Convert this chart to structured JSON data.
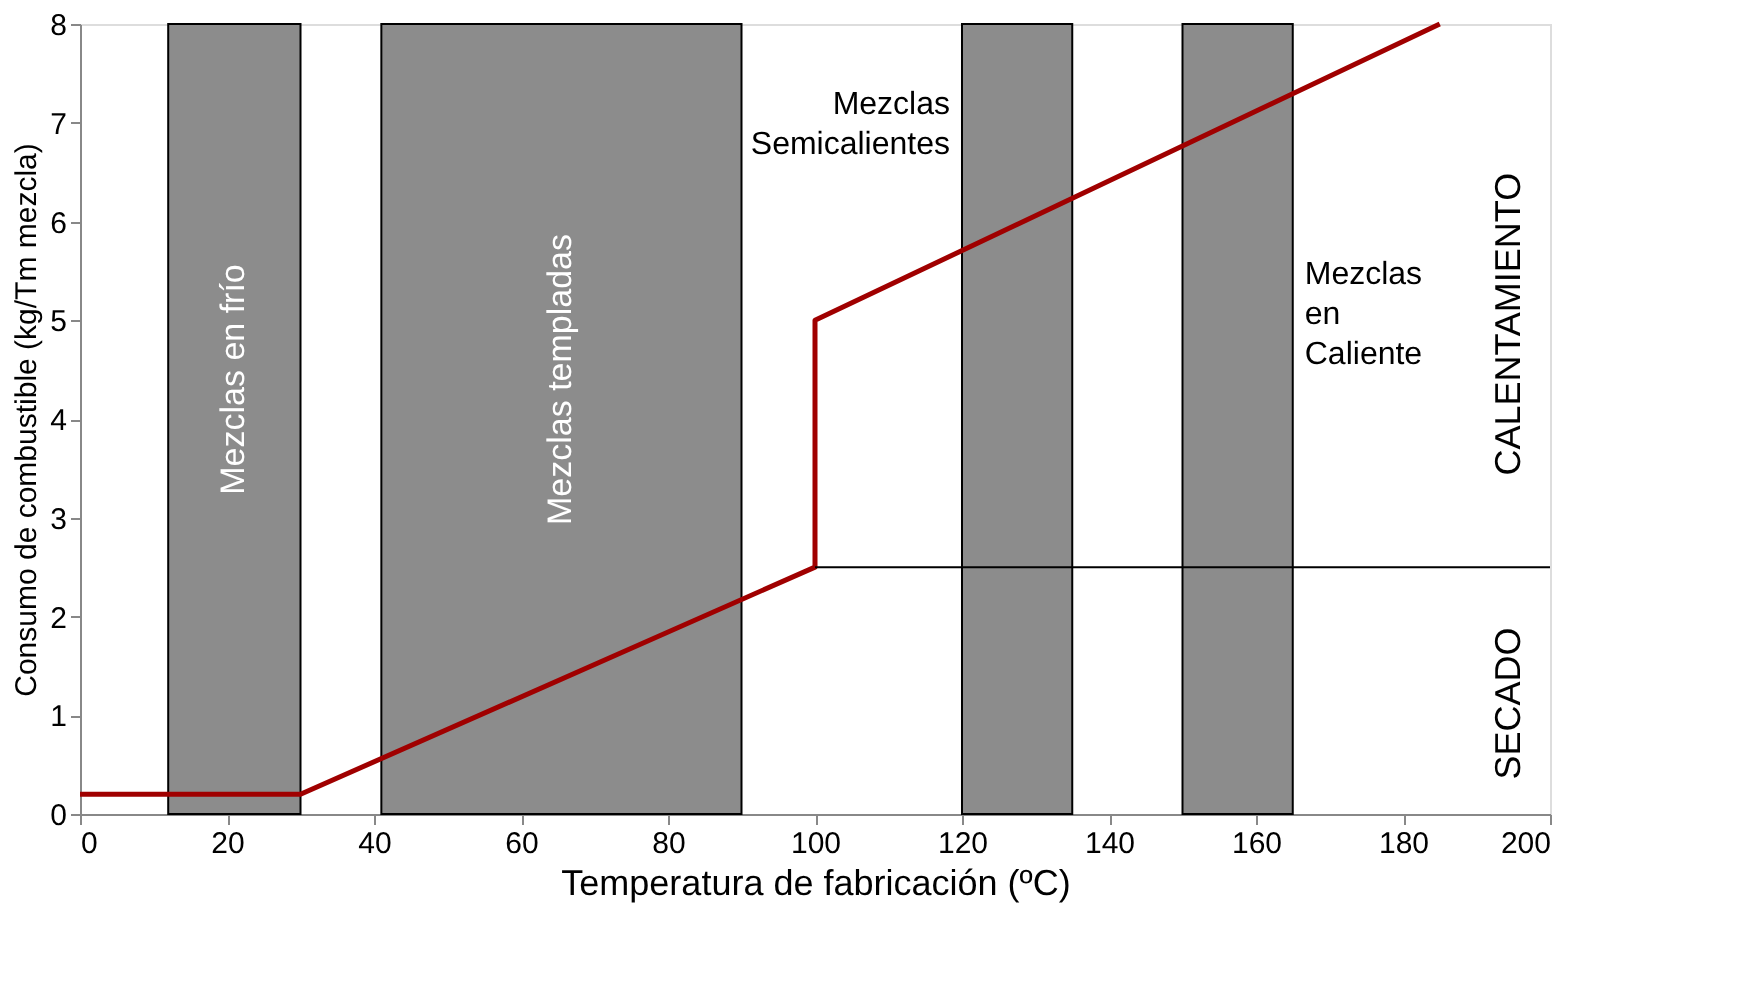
{
  "chart_data": {
    "type": "line",
    "xlabel": "Temperatura de fabricación (ºC)",
    "ylabel": "Consumo de combustible (kg/Tm mezcla)",
    "xlim": [
      0,
      200
    ],
    "ylim": [
      0,
      8
    ],
    "xticks": [
      0,
      20,
      40,
      60,
      80,
      100,
      120,
      140,
      160,
      180,
      200
    ],
    "yticks": [
      0,
      1,
      2,
      3,
      4,
      5,
      6,
      7,
      8
    ],
    "grid": false,
    "marker": "none",
    "line_style": "solid",
    "series": [
      {
        "x": [
          0,
          30,
          100,
          100,
          185
        ],
        "values": [
          0.2,
          0.2,
          2.5,
          5,
          8
        ],
        "color": "#a00000"
      },
      {
        "x": [
          100,
          200
        ],
        "values": [
          2.5,
          2.5
        ],
        "color": "#000000"
      }
    ],
    "bands": [
      {
        "axis": "x",
        "from": 12,
        "to": 30,
        "label": "Mezclas en frío",
        "color": "#8c8c8c"
      },
      {
        "axis": "x",
        "from": 41,
        "to": 90,
        "label": "Mezclas templadas",
        "color": "#8c8c8c"
      },
      {
        "axis": "x",
        "from": 120,
        "to": 135,
        "label": "Mezclas\nSemicalientes",
        "color": "#8c8c8c"
      },
      {
        "axis": "x",
        "from": 150,
        "to": 165,
        "label": "Mezclas\nen\nCaliente",
        "color": "#8c8c8c"
      }
    ],
    "annotations": [
      "CALENTAMIENTO",
      "SECADO"
    ]
  }
}
